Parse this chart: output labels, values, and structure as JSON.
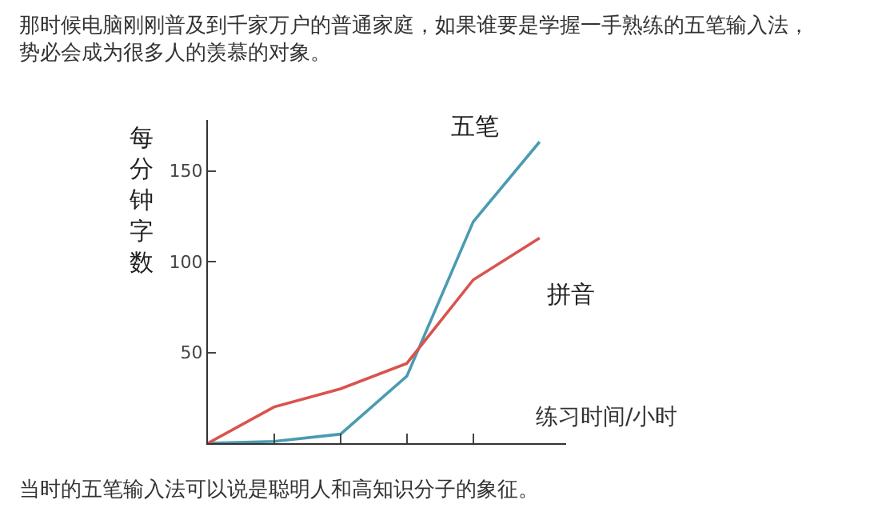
{
  "chart_data": {
    "type": "line",
    "title": "那时候电脑刚刚普及到千家万户的普通家庭，如果谁要是学握一手熟练的五笔输入法，势必会成为很多人的羡慕的对象。",
    "annotations": [
      "当时的五笔输入法可以说是聪明人和高知识分子的象征。"
    ],
    "xlabel": "练习时间/小时",
    "ylabel": "每分钟字数",
    "categories": [
      null,
      null,
      null,
      null,
      null,
      null
    ],
    "series": [
      {
        "name": "五笔",
        "color": "#4a9bb0",
        "values": [
          0,
          1,
          5,
          37,
          122,
          166
        ]
      },
      {
        "name": "拼音",
        "color": "#d9534f",
        "values": [
          0,
          20,
          30,
          44,
          90,
          113
        ]
      }
    ],
    "ylim": [
      0,
      178
    ],
    "yticks": [
      50,
      100,
      150
    ],
    "legend": false,
    "marker": "none",
    "line_style": "solid"
  }
}
